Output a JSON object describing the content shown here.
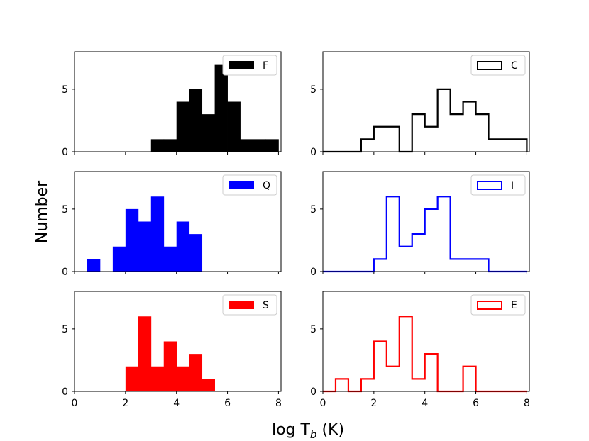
{
  "figure": {
    "xlabel": "log T",
    "xlabel_sub": "b",
    "xlabel_unit": " (K)",
    "ylabel": "Number"
  },
  "chart_data": [
    {
      "type": "histogram",
      "style": "filled",
      "color": "#000000",
      "legend": "F",
      "xlim": [
        0,
        8.1
      ],
      "ylim": [
        0,
        8
      ],
      "xticks": [
        0,
        2,
        4,
        6,
        8
      ],
      "yticks": [
        0,
        5
      ],
      "bin_width": 0.5,
      "bins": [
        [
          3.0,
          1
        ],
        [
          3.5,
          1
        ],
        [
          4.0,
          4
        ],
        [
          4.5,
          5
        ],
        [
          5.0,
          3
        ],
        [
          5.5,
          7
        ],
        [
          6.0,
          4
        ],
        [
          6.5,
          1
        ],
        [
          7.0,
          1
        ],
        [
          7.5,
          1
        ]
      ]
    },
    {
      "type": "histogram",
      "style": "step",
      "color": "#000000",
      "legend": "C",
      "xlim": [
        0,
        8.1
      ],
      "ylim": [
        0,
        8
      ],
      "xticks": [
        0,
        2,
        4,
        6,
        8
      ],
      "yticks": [
        0,
        5
      ],
      "bin_width": 0.5,
      "bins": [
        [
          0.0,
          0
        ],
        [
          0.5,
          0
        ],
        [
          1.0,
          0
        ],
        [
          1.5,
          1
        ],
        [
          2.0,
          2
        ],
        [
          2.5,
          2
        ],
        [
          3.0,
          0
        ],
        [
          3.5,
          3
        ],
        [
          4.0,
          2
        ],
        [
          4.5,
          5
        ],
        [
          5.0,
          3
        ],
        [
          5.5,
          4
        ],
        [
          6.0,
          3
        ],
        [
          6.5,
          1
        ],
        [
          7.0,
          1
        ],
        [
          7.5,
          1
        ]
      ]
    },
    {
      "type": "histogram",
      "style": "filled",
      "color": "#0000ff",
      "legend": "Q",
      "xlim": [
        0,
        8.1
      ],
      "ylim": [
        0,
        8
      ],
      "xticks": [
        0,
        2,
        4,
        6,
        8
      ],
      "yticks": [
        0,
        5
      ],
      "bin_width": 0.5,
      "bins": [
        [
          0.5,
          1
        ],
        [
          1.5,
          2
        ],
        [
          2.0,
          5
        ],
        [
          2.5,
          4
        ],
        [
          3.0,
          6
        ],
        [
          3.5,
          2
        ],
        [
          4.0,
          4
        ],
        [
          4.5,
          3
        ]
      ]
    },
    {
      "type": "histogram",
      "style": "step",
      "color": "#0000ff",
      "legend": "I",
      "xlim": [
        0,
        8.1
      ],
      "ylim": [
        0,
        8
      ],
      "xticks": [
        0,
        2,
        4,
        6,
        8
      ],
      "yticks": [
        0,
        5
      ],
      "bin_width": 0.5,
      "bins": [
        [
          0.0,
          0
        ],
        [
          0.5,
          0
        ],
        [
          1.0,
          0
        ],
        [
          1.5,
          0
        ],
        [
          2.0,
          1
        ],
        [
          2.5,
          6
        ],
        [
          3.0,
          2
        ],
        [
          3.5,
          3
        ],
        [
          4.0,
          5
        ],
        [
          4.5,
          6
        ],
        [
          5.0,
          1
        ],
        [
          5.5,
          1
        ],
        [
          6.0,
          1
        ],
        [
          6.5,
          0
        ],
        [
          7.0,
          0
        ],
        [
          7.5,
          0
        ]
      ]
    },
    {
      "type": "histogram",
      "style": "filled",
      "color": "#ff0000",
      "legend": "S",
      "xlim": [
        0,
        8.1
      ],
      "ylim": [
        0,
        8
      ],
      "xticks": [
        0,
        2,
        4,
        6,
        8
      ],
      "yticks": [
        0,
        5
      ],
      "bin_width": 0.5,
      "bins": [
        [
          2.0,
          2
        ],
        [
          2.5,
          6
        ],
        [
          3.0,
          2
        ],
        [
          3.5,
          4
        ],
        [
          4.0,
          2
        ],
        [
          4.5,
          3
        ],
        [
          5.0,
          1
        ]
      ]
    },
    {
      "type": "histogram",
      "style": "step",
      "color": "#ff0000",
      "legend": "E",
      "xlim": [
        0,
        8.1
      ],
      "ylim": [
        0,
        8
      ],
      "xticks": [
        0,
        2,
        4,
        6,
        8
      ],
      "yticks": [
        0,
        5
      ],
      "bin_width": 0.5,
      "bins": [
        [
          0.0,
          0
        ],
        [
          0.5,
          1
        ],
        [
          1.0,
          0
        ],
        [
          1.5,
          1
        ],
        [
          2.0,
          4
        ],
        [
          2.5,
          2
        ],
        [
          3.0,
          6
        ],
        [
          3.5,
          1
        ],
        [
          4.0,
          3
        ],
        [
          4.5,
          0
        ],
        [
          5.0,
          0
        ],
        [
          5.5,
          2
        ],
        [
          6.0,
          0
        ],
        [
          6.5,
          0
        ],
        [
          7.0,
          0
        ],
        [
          7.5,
          0
        ]
      ]
    }
  ]
}
